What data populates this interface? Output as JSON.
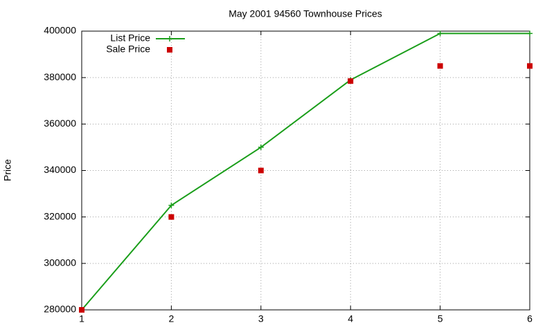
{
  "chart_data": {
    "type": "line",
    "title": "May 2001 94560 Townhouse Prices",
    "y_label": "Price",
    "x": [
      1,
      2,
      3,
      4,
      5,
      6
    ],
    "series": [
      {
        "name": "List Price",
        "color": "#1a9e1a",
        "style": "linespoints",
        "marker": "plus",
        "values": [
          280000,
          325000,
          350000,
          379000,
          399000,
          399000
        ]
      },
      {
        "name": "Sale Price",
        "color": "#cc0000",
        "style": "points",
        "marker": "square",
        "values": [
          280000,
          320000,
          340000,
          378500,
          385000,
          385000
        ]
      }
    ],
    "xlim": [
      1,
      6
    ],
    "xticks": [
      1,
      2,
      3,
      4,
      5,
      6
    ],
    "ylim": [
      280000,
      400000
    ],
    "yticks": [
      280000,
      300000,
      320000,
      340000,
      360000,
      380000,
      400000
    ],
    "grid": true,
    "legend": "top-left"
  }
}
